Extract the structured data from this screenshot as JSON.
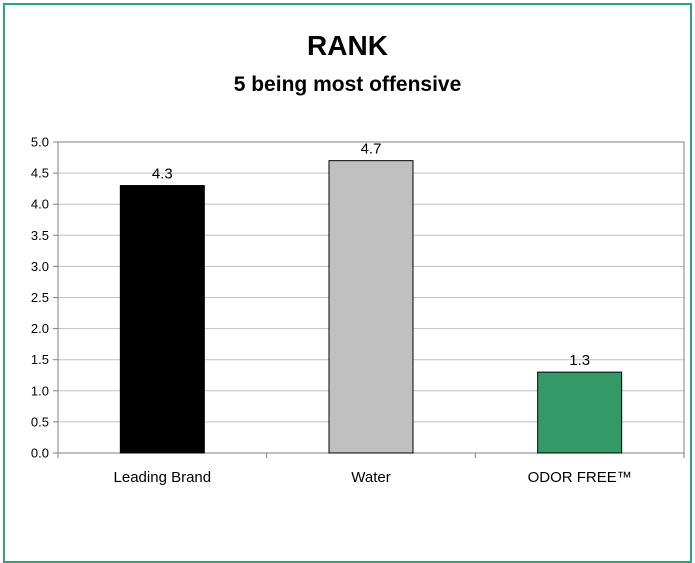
{
  "chart_data": {
    "type": "bar",
    "title": "RANK",
    "subtitle": "5 being most offensive",
    "categories": [
      "Leading Brand",
      "Water",
      "ODOR FREE™"
    ],
    "values": [
      4.3,
      4.7,
      1.3
    ],
    "data_labels": [
      "4.3",
      "4.7",
      "1.3"
    ],
    "bar_colors": [
      "#000000",
      "#c0c0c0",
      "#339966"
    ],
    "ylim": [
      0,
      5
    ],
    "yticks": [
      "0.0",
      "0.5",
      "1.0",
      "1.5",
      "2.0",
      "2.5",
      "3.0",
      "3.5",
      "4.0",
      "4.5",
      "5.0"
    ],
    "xlabel": "",
    "ylabel": "",
    "grid": true,
    "legend": "none"
  },
  "colors": {
    "border": "#2fa37a",
    "gridline": "#c0c0c0"
  }
}
